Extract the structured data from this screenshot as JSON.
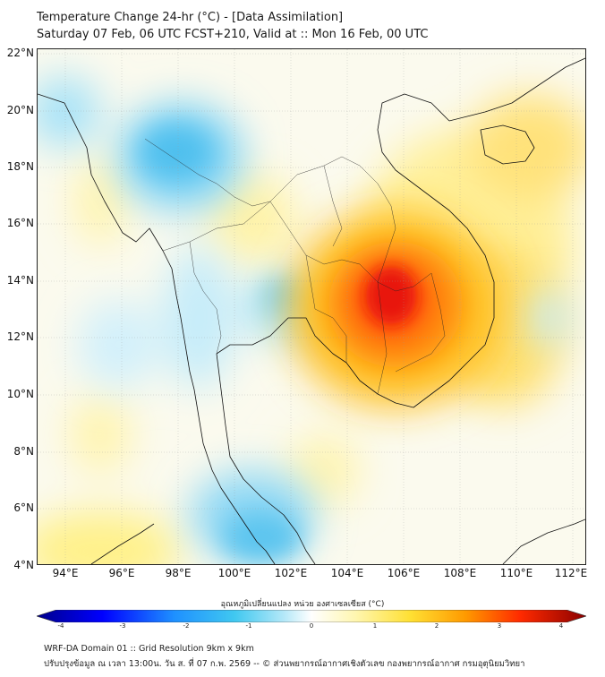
{
  "title": {
    "line1": "Temperature Change 24-hr (°C) - [Data Assimilation]",
    "line2": "Saturday 07 Feb, 06 UTC FCST+210, Valid at :: Mon 16 Feb, 00 UTC"
  },
  "map": {
    "lat_range": [
      4,
      22
    ],
    "lon_range": [
      93,
      112.5
    ],
    "lat_ticks": [
      "22°N",
      "20°N",
      "18°N",
      "16°N",
      "14°N",
      "12°N",
      "10°N",
      "8°N",
      "6°N",
      "4°N"
    ],
    "lon_ticks": [
      "94°E",
      "96°E",
      "98°E",
      "100°E",
      "102°E",
      "104°E",
      "106°E",
      "108°E",
      "110°E",
      "112°E"
    ],
    "lat_tick_values": [
      22,
      20,
      18,
      16,
      14,
      12,
      10,
      8,
      6,
      4
    ],
    "lon_tick_values": [
      94,
      96,
      98,
      100,
      102,
      104,
      106,
      108,
      110,
      112
    ],
    "gridlines": true,
    "field": "24-hr temperature change",
    "max_warming_center": {
      "lat": 13.2,
      "lon": 105.3,
      "value": 3.0
    }
  },
  "colorbar": {
    "label": "อุณหภูมิเปลี่ยนแปลง หน่วย องศาเซลเซียส (°C)",
    "ticks": [
      "-4",
      "-3",
      "-2",
      "-1",
      "0",
      "1",
      "2",
      "3",
      "4"
    ],
    "tick_values": [
      -4,
      -3,
      -2,
      -1,
      0,
      1,
      2,
      3,
      4
    ],
    "colors": {
      "min": "#00008b",
      "cold": "#1e90ff",
      "cool": "#40c8f0",
      "zero": "#ffffff",
      "warm": "#ffe033",
      "hot": "#ff8a00",
      "max": "#8b0000"
    }
  },
  "footer": {
    "line1": "WRF-DA Domain 01 :: Grid Resolution 9km x 9km",
    "line2": "ปรับปรุงข้อมูล ณ เวลา 13:00น. วัน ส. ที่ 07 ก.พ. 2569 -- © ส่วนพยากรณ์อากาศเชิงตัวเลข กองพยากรณ์อากาศ กรมอุตุนิยมวิทยา"
  }
}
